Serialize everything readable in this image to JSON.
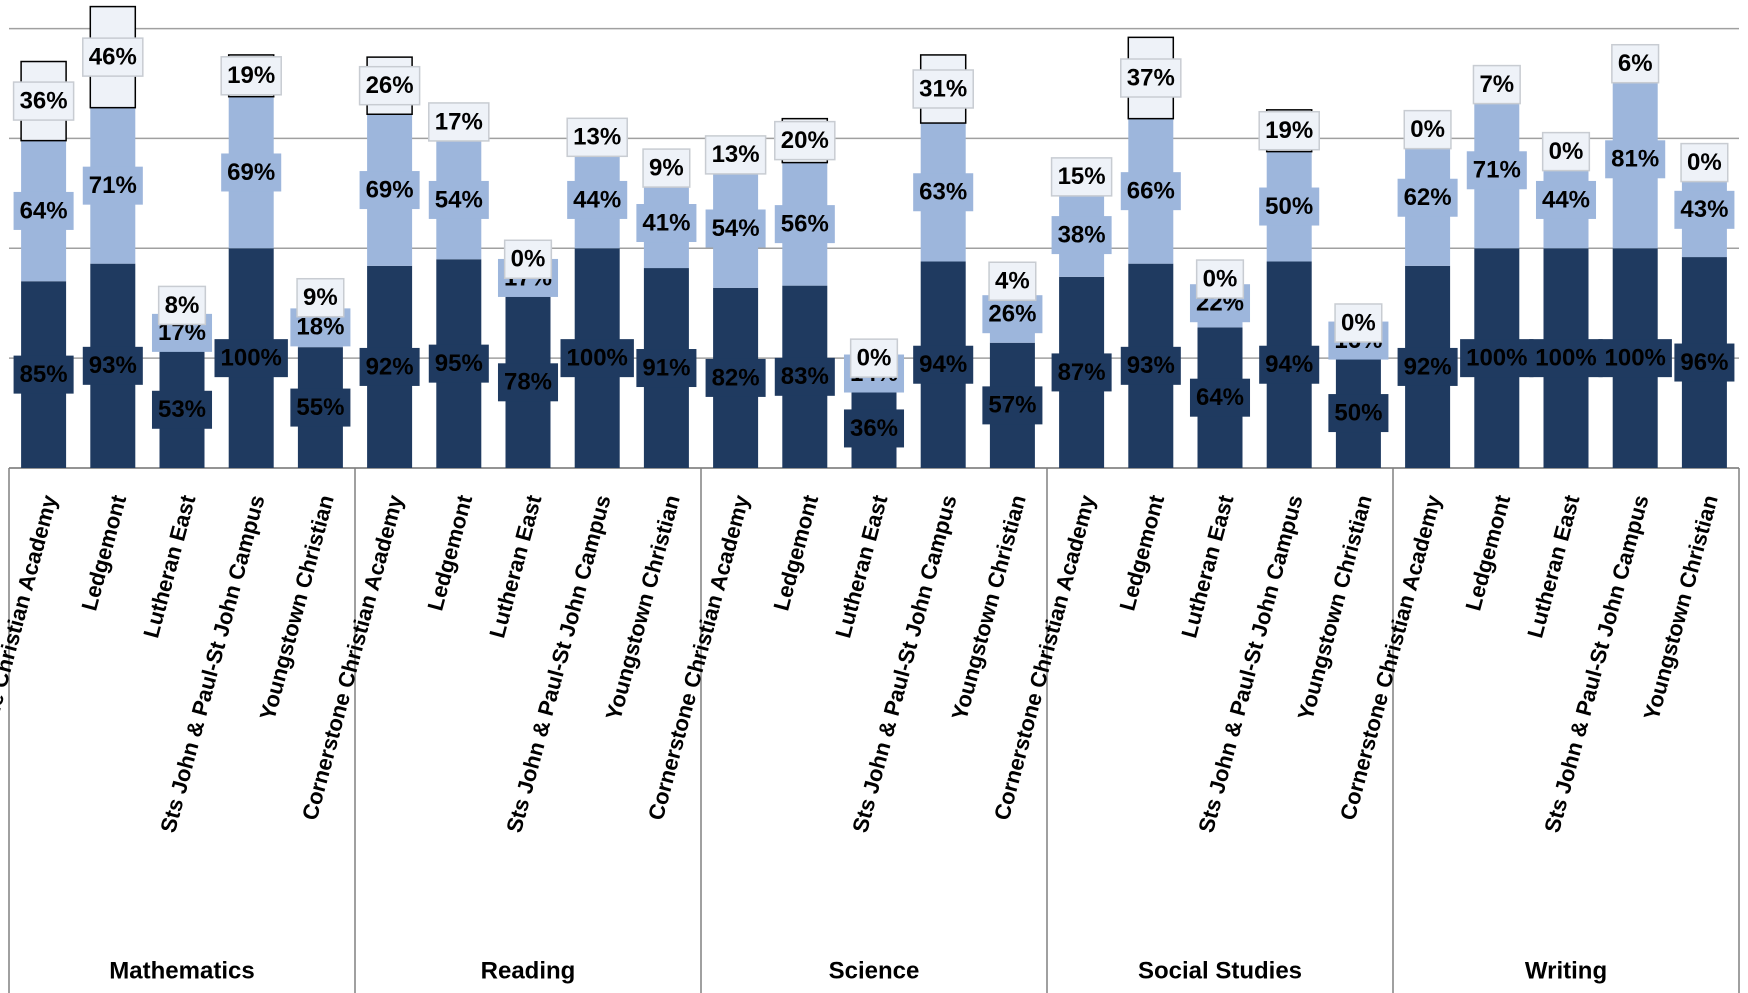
{
  "chart_data": {
    "type": "bar",
    "stacked": true,
    "groups": [
      "Mathematics",
      "Reading",
      "Science",
      "Social Studies",
      "Writing"
    ],
    "categories": [
      "Cornerstone Christian Academy",
      "Ledgemont",
      "Lutheran East",
      "Sts John & Paul-St John Campus",
      "Youngstown Christian",
      "Cornerstone Christian Academy",
      "Ledgemont",
      "Lutheran East",
      "Sts John & Paul-St John Campus",
      "Youngstown Christian",
      "Cornerstone Christian Academy",
      "Ledgemont",
      "Lutheran East",
      "Sts John & Paul-St John Campus",
      "Youngstown Christian",
      "Cornerstone Christian Academy",
      "Ledgemont",
      "Lutheran East",
      "Sts John & Paul-St John Campus",
      "Youngstown Christian",
      "Cornerstone Christian Academy",
      "Ledgemont",
      "Lutheran East",
      "Sts John & Paul-St John Campus",
      "Youngstown Christian"
    ],
    "series": [
      {
        "color": "#1f3a60",
        "values": [
          85,
          93,
          53,
          100,
          55,
          92,
          95,
          78,
          100,
          91,
          82,
          83,
          36,
          94,
          57,
          87,
          93,
          64,
          94,
          50,
          92,
          100,
          100,
          100,
          96
        ],
        "value_labels": [
          "85%",
          "93%",
          "53%",
          "100%",
          "55%",
          "92%",
          "95%",
          "78%",
          "100%",
          "91%",
          "82%",
          "83%",
          "36%",
          "94%",
          "57%",
          "87%",
          "93%",
          "64%",
          "94%",
          "50%",
          "92%",
          "100%",
          "100%",
          "100%",
          "96%"
        ]
      },
      {
        "color": "#9db6dc",
        "values": [
          64,
          71,
          17,
          69,
          18,
          69,
          54,
          17,
          44,
          41,
          54,
          56,
          14,
          63,
          26,
          38,
          66,
          22,
          50,
          16,
          62,
          71,
          44,
          81,
          43
        ],
        "value_labels": [
          "64%",
          "71%",
          "17%",
          "69%",
          "18%",
          "69%",
          "54%",
          "17%",
          "44%",
          "41%",
          "54%",
          "56%",
          "14%",
          "63%",
          "26%",
          "38%",
          "66%",
          "22%",
          "50%",
          "16%",
          "62%",
          "71%",
          "44%",
          "81%",
          "43%"
        ]
      },
      {
        "color": "#eef2f8",
        "values": [
          36,
          46,
          8,
          19,
          9,
          26,
          17,
          0,
          13,
          9,
          13,
          20,
          0,
          31,
          4,
          15,
          37,
          0,
          19,
          0,
          0,
          7,
          0,
          6,
          0
        ],
        "value_labels": [
          "36%",
          "46%",
          "8%",
          "19%",
          "9%",
          "26%",
          "17%",
          "0%",
          "13%",
          "9%",
          "13%",
          "20%",
          "0%",
          "31%",
          "4%",
          "15%",
          "37%",
          "0%",
          "19%",
          "0%",
          "0%",
          "7%",
          "0%",
          "6%",
          "0%"
        ]
      }
    ],
    "ylim": [
      0,
      213
    ],
    "yticks": [
      0,
      50,
      100,
      150,
      200
    ],
    "grid": true
  }
}
